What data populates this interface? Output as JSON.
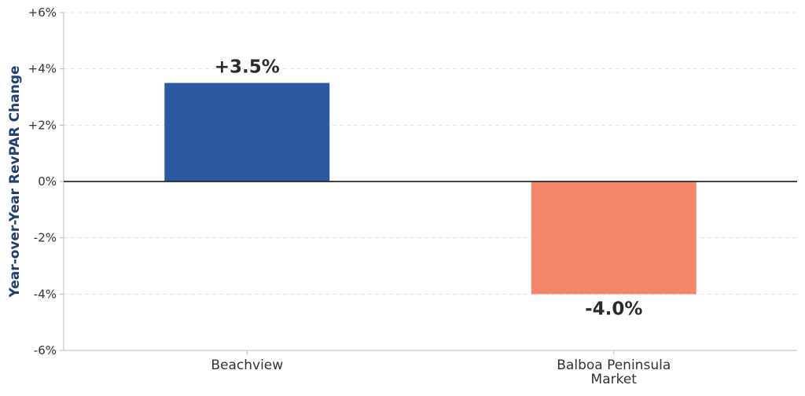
{
  "chart_data": {
    "type": "bar",
    "title": "",
    "xlabel": "",
    "ylabel": "Year-over-Year RevPAR Change",
    "categories": [
      [
        "Beachview"
      ],
      [
        "Balboa Peninsula",
        "Market"
      ]
    ],
    "values": [
      3.5,
      -4.0
    ],
    "data_labels": [
      "+3.5%",
      "-4.0%"
    ],
    "bar_colors": [
      "#2c5aa0",
      "#f4876a"
    ],
    "ylim": [
      -6,
      6
    ],
    "yticks": [
      6,
      4,
      2,
      0,
      -2,
      -4,
      -6
    ],
    "ytick_labels": [
      "+6%",
      "+4%",
      "+2%",
      "0%",
      "-2%",
      "-4%",
      "-6%"
    ],
    "grid": "horizontal dashed",
    "zero_line_color": "#2b2b2b",
    "ylabel_color": "#1f3f73"
  }
}
